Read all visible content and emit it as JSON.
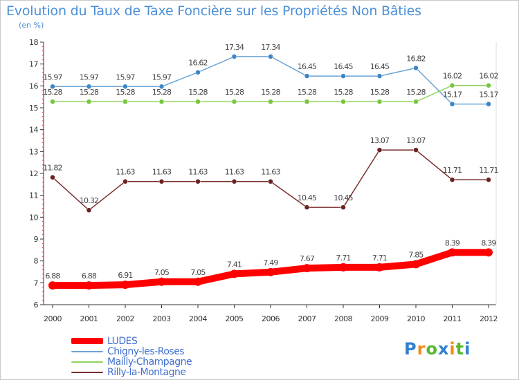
{
  "title": "Evolution du Taux de Taxe Foncière sur les Propriétés Non Bâties",
  "unit_label": "(en %)",
  "logo": {
    "text": "Proxiti",
    "letters": [
      {
        "ch": "P",
        "color": "#2f7fd0"
      },
      {
        "ch": "r",
        "color": "#f08a1c"
      },
      {
        "ch": "o",
        "color": "#55b82f"
      },
      {
        "ch": "x",
        "color": "#2f7fd0"
      },
      {
        "ch": "i",
        "color": "#f08a1c"
      },
      {
        "ch": "t",
        "color": "#55b82f"
      },
      {
        "ch": "i",
        "color": "#2f7fd0"
      }
    ]
  },
  "chart_data": {
    "type": "line",
    "title": "Evolution du Taux de Taxe Foncière sur les Propriétés Non Bâties",
    "ylabel": "(en %)",
    "xlabel": "",
    "x": [
      "2000",
      "2001",
      "2002",
      "2003",
      "2004",
      "2005",
      "2006",
      "2007",
      "2008",
      "2009",
      "2010",
      "2011",
      "2012"
    ],
    "ylim": [
      6,
      18
    ],
    "yticks": [
      6,
      7,
      8,
      9,
      10,
      11,
      12,
      13,
      14,
      15,
      16,
      17,
      18
    ],
    "grid": false,
    "legend_position": "bottom-left",
    "series": [
      {
        "name": "LUDES",
        "color": "#ff0000",
        "values": [
          6.88,
          6.88,
          6.91,
          7.05,
          7.05,
          7.41,
          7.49,
          7.67,
          7.71,
          7.71,
          7.85,
          8.39,
          8.39
        ],
        "labels": [
          "6.88",
          "6.88",
          "6.91",
          "7.05",
          "7.05",
          "7.41",
          "7.49",
          "7.67",
          "7.71",
          "7.71",
          "7.85",
          "8.39",
          "8.39"
        ]
      },
      {
        "name": "Chigny-les-Roses",
        "color": "#6aa3d5",
        "marker_color": "#3d86c6",
        "values": [
          15.97,
          15.97,
          15.97,
          15.97,
          16.62,
          17.34,
          17.34,
          16.45,
          16.45,
          16.45,
          16.82,
          15.17,
          15.17
        ],
        "labels": [
          "15.97",
          "15.97",
          "15.97",
          "15.97",
          "16.62",
          "17.34",
          "17.34",
          "16.45",
          "16.45",
          "16.45",
          "16.82",
          "15.17",
          "15.17"
        ]
      },
      {
        "name": "Mailly-Champagne",
        "color": "#8fd45e",
        "marker_color": "#76c640",
        "values": [
          15.28,
          15.28,
          15.28,
          15.28,
          15.28,
          15.28,
          15.28,
          15.28,
          15.28,
          15.28,
          15.28,
          16.02,
          16.02
        ],
        "labels": [
          "15.28",
          "15.28",
          "15.28",
          "15.28",
          "15.28",
          "15.28",
          "15.28",
          "15.28",
          "15.28",
          "15.28",
          "15.28",
          "16.02",
          "16.02"
        ]
      },
      {
        "name": "Rilly-la-Montagne",
        "color": "#7a2e2e",
        "marker_color": "#6b2222",
        "values": [
          11.82,
          10.32,
          11.63,
          11.63,
          11.63,
          11.63,
          11.63,
          10.45,
          10.45,
          13.07,
          13.07,
          11.71,
          11.71
        ],
        "labels": [
          "11.82",
          "10.32",
          "11.63",
          "11.63",
          "11.63",
          "11.63",
          "11.63",
          "10.45",
          "10.45",
          "13.07",
          "13.07",
          "11.71",
          "11.71"
        ]
      }
    ]
  }
}
